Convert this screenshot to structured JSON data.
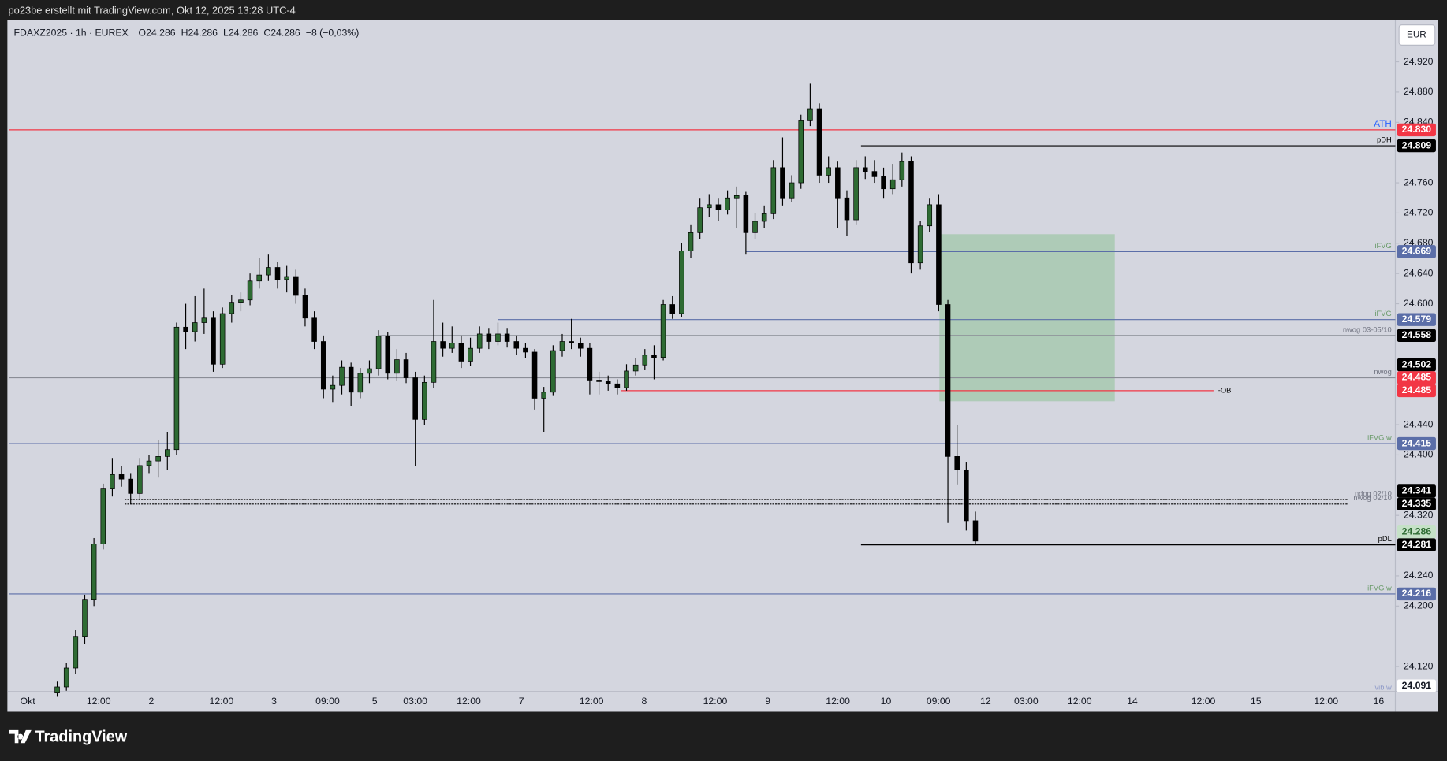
{
  "header": {
    "title": "po23be erstellt mit TradingView.com, Okt 12, 2025 13:28 UTC-4"
  },
  "brand": "TradingView",
  "chart_data": {
    "type": "candlestick",
    "symbol": "FDAXZ2025 · 1h · EUREX",
    "legend": [
      "O24.286",
      "H24.286",
      "L24.286",
      "C24.286",
      "−8 (−0,03%)"
    ],
    "currency": "EUR",
    "ylim": [
      24087,
      24975
    ],
    "yticks": [
      {
        "value": 24920,
        "label": "24.920"
      },
      {
        "value": 24880,
        "label": "24.880"
      },
      {
        "value": 24840,
        "label": "24.840"
      },
      {
        "value": 24760,
        "label": "24.760"
      },
      {
        "value": 24720,
        "label": "24.720"
      },
      {
        "value": 24680,
        "label": "24.680"
      },
      {
        "value": 24640,
        "label": "24.640"
      },
      {
        "value": 24600,
        "label": "24.600"
      },
      {
        "value": 24440,
        "label": "24.440"
      },
      {
        "value": 24400,
        "label": "24.400"
      },
      {
        "value": 24320,
        "label": "24.320"
      },
      {
        "value": 24240,
        "label": "24.240"
      },
      {
        "value": 24200,
        "label": "24.200"
      },
      {
        "value": 24120,
        "label": "24.120"
      }
    ],
    "x_labels": [
      "Okt",
      "12:00",
      "2",
      "12:00",
      "3",
      "09:00",
      "5",
      "03:00",
      "12:00",
      "7",
      "12:00",
      "8",
      "12:00",
      "9",
      "12:00",
      "10",
      "09:00",
      "12",
      "03:00",
      "12:00",
      "14",
      "12:00",
      "15",
      "12:00",
      "16"
    ],
    "up_color": "#2e6b33",
    "down_color": "#000000",
    "candles": [
      [
        24085,
        24100,
        24080,
        24093
      ],
      [
        24093,
        24125,
        24088,
        24118
      ],
      [
        24118,
        24168,
        24110,
        24160
      ],
      [
        24160,
        24215,
        24150,
        24209
      ],
      [
        24209,
        24290,
        24200,
        24282
      ],
      [
        24282,
        24362,
        24275,
        24355
      ],
      [
        24355,
        24395,
        24345,
        24374
      ],
      [
        24374,
        24385,
        24358,
        24368
      ],
      [
        24368,
        24375,
        24335,
        24349
      ],
      [
        24349,
        24395,
        24340,
        24386
      ],
      [
        24386,
        24400,
        24375,
        24392
      ],
      [
        24392,
        24420,
        24370,
        24398
      ],
      [
        24398,
        24430,
        24380,
        24407
      ],
      [
        24407,
        24575,
        24400,
        24569
      ],
      [
        24569,
        24600,
        24540,
        24563
      ],
      [
        24563,
        24610,
        24550,
        24575
      ],
      [
        24575,
        24620,
        24560,
        24581
      ],
      [
        24581,
        24590,
        24510,
        24520
      ],
      [
        24520,
        24595,
        24515,
        24587
      ],
      [
        24587,
        24612,
        24575,
        24602
      ],
      [
        24602,
        24615,
        24590,
        24605
      ],
      [
        24605,
        24640,
        24598,
        24630
      ],
      [
        24630,
        24660,
        24620,
        24638
      ],
      [
        24638,
        24665,
        24630,
        24648
      ],
      [
        24648,
        24655,
        24620,
        24632
      ],
      [
        24632,
        24650,
        24615,
        24636
      ],
      [
        24636,
        24645,
        24600,
        24611
      ],
      [
        24611,
        24620,
        24570,
        24581
      ],
      [
        24581,
        24590,
        24540,
        24550
      ],
      [
        24550,
        24558,
        24475,
        24487
      ],
      [
        24487,
        24505,
        24470,
        24492
      ],
      [
        24492,
        24525,
        24480,
        24516
      ],
      [
        24516,
        24522,
        24465,
        24483
      ],
      [
        24483,
        24515,
        24475,
        24508
      ],
      [
        24508,
        24525,
        24495,
        24514
      ],
      [
        24514,
        24565,
        24505,
        24557
      ],
      [
        24557,
        24562,
        24500,
        24508
      ],
      [
        24508,
        24540,
        24498,
        24526
      ],
      [
        24526,
        24535,
        24495,
        24502
      ],
      [
        24502,
        24510,
        24385,
        24447
      ],
      [
        24447,
        24505,
        24440,
        24496
      ],
      [
        24496,
        24605,
        24488,
        24550
      ],
      [
        24550,
        24575,
        24530,
        24541
      ],
      [
        24541,
        24570,
        24535,
        24548
      ],
      [
        24548,
        24558,
        24515,
        24524
      ],
      [
        24524,
        24555,
        24518,
        24541
      ],
      [
        24541,
        24570,
        24535,
        24560
      ],
      [
        24560,
        24568,
        24540,
        24550
      ],
      [
        24550,
        24575,
        24545,
        24560
      ],
      [
        24560,
        24568,
        24542,
        24550
      ],
      [
        24550,
        24558,
        24532,
        24541
      ],
      [
        24541,
        24548,
        24528,
        24536
      ],
      [
        24536,
        24540,
        24460,
        24475
      ],
      [
        24475,
        24490,
        24430,
        24483
      ],
      [
        24483,
        24545,
        24478,
        24538
      ],
      [
        24538,
        24560,
        24530,
        24550
      ],
      [
        24550,
        24580,
        24540,
        24548
      ],
      [
        24548,
        24555,
        24530,
        24541
      ],
      [
        24541,
        24548,
        24480,
        24499
      ],
      [
        24499,
        24510,
        24480,
        24497
      ],
      [
        24497,
        24505,
        24485,
        24494
      ],
      [
        24494,
        24500,
        24480,
        24489
      ],
      [
        24489,
        24520,
        24485,
        24511
      ],
      [
        24511,
        24528,
        24505,
        24519
      ],
      [
        24519,
        24540,
        24512,
        24532
      ],
      [
        24532,
        24545,
        24500,
        24529
      ],
      [
        24529,
        24605,
        24525,
        24599
      ],
      [
        24599,
        24610,
        24580,
        24587
      ],
      [
        24587,
        24680,
        24582,
        24670
      ],
      [
        24670,
        24705,
        24660,
        24694
      ],
      [
        24694,
        24740,
        24685,
        24727
      ],
      [
        24727,
        24745,
        24715,
        24731
      ],
      [
        24731,
        24740,
        24710,
        24724
      ],
      [
        24724,
        24750,
        24718,
        24740
      ],
      [
        24740,
        24755,
        24700,
        24743
      ],
      [
        24743,
        24748,
        24665,
        24694
      ],
      [
        24694,
        24720,
        24685,
        24709
      ],
      [
        24709,
        24730,
        24700,
        24719
      ],
      [
        24719,
        24790,
        24712,
        24780
      ],
      [
        24780,
        24820,
        24730,
        24740
      ],
      [
        24740,
        24770,
        24735,
        24760
      ],
      [
        24760,
        24850,
        24752,
        24843
      ],
      [
        24843,
        24892,
        24835,
        24858
      ],
      [
        24858,
        24865,
        24760,
        24770
      ],
      [
        24770,
        24795,
        24760,
        24780
      ],
      [
        24780,
        24788,
        24700,
        24740
      ],
      [
        24740,
        24750,
        24690,
        24711
      ],
      [
        24711,
        24790,
        24705,
        24780
      ],
      [
        24780,
        24795,
        24765,
        24775
      ],
      [
        24775,
        24790,
        24760,
        24768
      ],
      [
        24768,
        24780,
        24740,
        24752
      ],
      [
        24752,
        24785,
        24745,
        24764
      ],
      [
        24764,
        24800,
        24755,
        24788
      ],
      [
        24788,
        24795,
        24640,
        24654
      ],
      [
        24654,
        24710,
        24645,
        24703
      ],
      [
        24703,
        24740,
        24695,
        24731
      ],
      [
        24731,
        24745,
        24590,
        24599
      ],
      [
        24599,
        24605,
        24310,
        24398
      ],
      [
        24398,
        24440,
        24360,
        24380
      ],
      [
        24380,
        24390,
        24300,
        24313
      ],
      [
        24313,
        24325,
        24281,
        24286
      ]
    ],
    "zones": [
      {
        "from": 24692,
        "to": 24471,
        "color": "#4caf50"
      }
    ],
    "levels": [
      {
        "name": "ATH",
        "value": 24830,
        "label": "24.830",
        "color": "#f23645"
      },
      {
        "name": "pDH",
        "value": 24809,
        "label": "24.809",
        "color": "#000000"
      },
      {
        "name": "iFVG",
        "value": 24669,
        "label": "24.669",
        "color": "#5b6ea8"
      },
      {
        "name": "iFVG",
        "value": 24579,
        "label": "24.579",
        "color": "#5b6ea8"
      },
      {
        "name": "nwog 03-05/10",
        "value": 24558,
        "label": "24.558",
        "color": "#000000"
      },
      {
        "name": "nwog",
        "value": 24502,
        "label": "24.502",
        "color": "#000000"
      },
      {
        "value": 24485,
        "label": "24.485",
        "color": "#f23645"
      },
      {
        "name": "-OB",
        "value": 24485,
        "label": "24.485",
        "color": "#f23645"
      },
      {
        "name": "iFVG w",
        "value": 24415,
        "label": "24.415",
        "color": "#5b6ea8"
      },
      {
        "name": "ndog 02/10",
        "value": 24341,
        "label": "24.341",
        "color": "#000000"
      },
      {
        "name": "nwog 02/10",
        "value": 24335,
        "label": "24.335",
        "color": "#000000"
      },
      {
        "value": 24286,
        "label": "24.286",
        "color": "#c5e1c7"
      },
      {
        "name": "pDL",
        "value": 24281,
        "label": "24.281",
        "color": "#000000"
      },
      {
        "name": "iFVG w",
        "value": 24216,
        "label": "24.216",
        "color": "#5b6ea8"
      },
      {
        "value": 24091,
        "label": "24.091",
        "color": "#ffffff"
      }
    ],
    "footer_label": "vib w"
  }
}
